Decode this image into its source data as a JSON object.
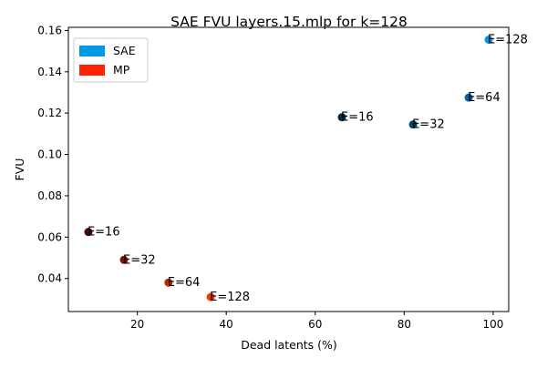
{
  "chart_data": {
    "type": "scatter",
    "title": "SAE FVU layers.15.mlp for k=128",
    "xlabel": "Dead latents (%)",
    "ylabel": "FVU",
    "xlim": [
      4.5,
      103.5
    ],
    "ylim": [
      0.024,
      0.1615
    ],
    "xticks": [
      20,
      40,
      60,
      80,
      100
    ],
    "yticks": [
      0.04,
      0.06,
      0.08,
      0.1,
      0.12,
      0.14,
      0.16
    ],
    "ytick_labels": [
      "0.04",
      "0.06",
      "0.08",
      "0.10",
      "0.12",
      "0.14",
      "0.16"
    ],
    "grid": false,
    "legend_position": "top-left",
    "legend": [
      {
        "label": "SAE",
        "color": "#0099e6"
      },
      {
        "label": "MP",
        "color": "#ff2200"
      }
    ],
    "series": [
      {
        "name": "SAE",
        "points": [
          {
            "x": 66,
            "y": 0.118,
            "label": "E=16",
            "color": "#002b44"
          },
          {
            "x": 82,
            "y": 0.1145,
            "label": "E=32",
            "color": "#004566"
          },
          {
            "x": 94.5,
            "y": 0.1275,
            "label": "E=64",
            "color": "#0068a8"
          },
          {
            "x": 99,
            "y": 0.1555,
            "label": "E=128",
            "color": "#0099e6"
          }
        ]
      },
      {
        "name": "MP",
        "points": [
          {
            "x": 9,
            "y": 0.0625,
            "label": "E=16",
            "color": "#4a0800"
          },
          {
            "x": 17,
            "y": 0.049,
            "label": "E=32",
            "color": "#801400"
          },
          {
            "x": 27,
            "y": 0.038,
            "label": "E=64",
            "color": "#c02a00"
          },
          {
            "x": 36.5,
            "y": 0.031,
            "label": "E=128",
            "color": "#ff3300"
          }
        ]
      }
    ]
  }
}
